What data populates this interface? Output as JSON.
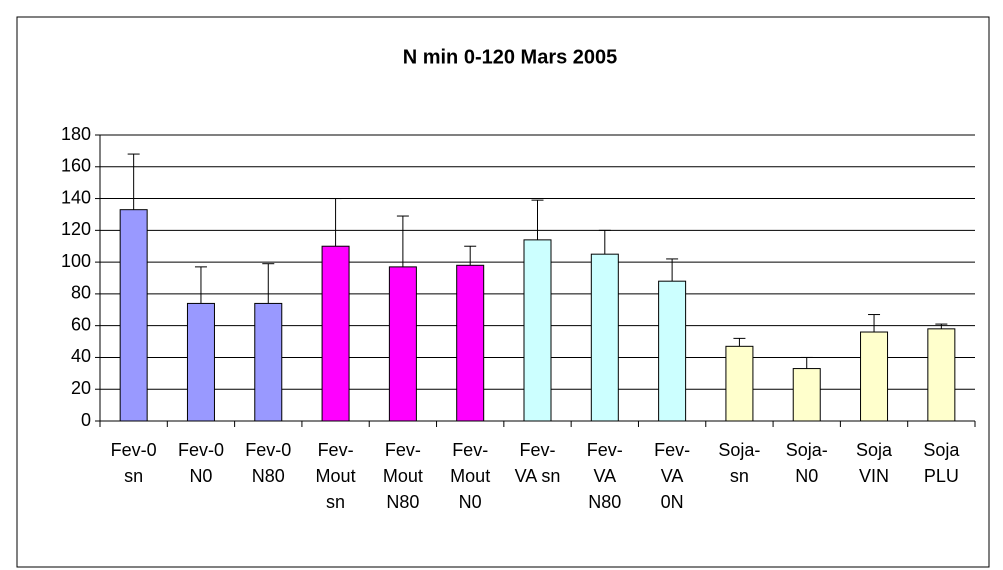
{
  "chart_data": {
    "type": "bar",
    "title": "N min 0-120 Mars 2005",
    "categories": [
      "Fev-0 sn",
      "Fev-0 N0",
      "Fev-0 N80",
      "Fev-Mout sn",
      "Fev-Mout N80",
      "Fev-Mout N0",
      "Fev-VA sn",
      "Fev-VA N80",
      "Fev-VA 0N",
      "Soja-sn",
      "Soja-N0",
      "Soja VIN",
      "Soja PLU"
    ],
    "values": [
      133,
      74,
      74,
      110,
      97,
      98,
      114,
      105,
      88,
      47,
      33,
      56,
      58
    ],
    "errors": [
      35,
      23,
      25,
      30,
      32,
      12,
      25,
      15,
      14,
      5,
      7,
      11,
      3
    ],
    "colors": [
      "#9999ff",
      "#9999ff",
      "#9999ff",
      "#ff00ff",
      "#ff00ff",
      "#ff00ff",
      "#ccffff",
      "#ccffff",
      "#ccffff",
      "#ffffcc",
      "#ffffcc",
      "#ffffcc",
      "#ffffcc"
    ],
    "ylim": [
      0,
      180
    ],
    "yticks": [
      0,
      20,
      40,
      60,
      80,
      100,
      120,
      140,
      160,
      180
    ],
    "grid": true
  }
}
